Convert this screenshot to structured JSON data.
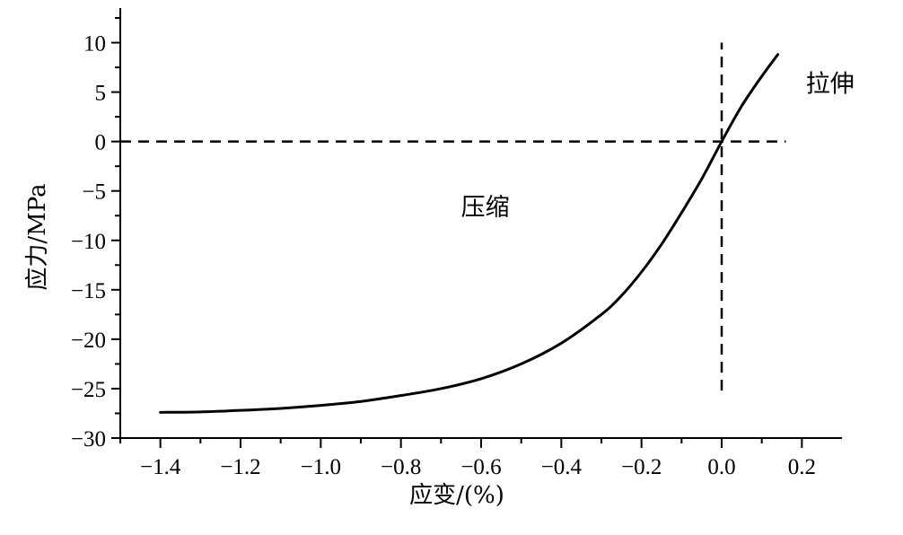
{
  "chart_data": {
    "type": "line",
    "title": "",
    "xlabel": "应变/(%)",
    "ylabel": "应力/MPa",
    "xlim": [
      -1.5,
      0.3
    ],
    "ylim": [
      -30,
      13.5
    ],
    "x_ticks": [
      -1.4,
      -1.2,
      -1.0,
      -0.8,
      -0.6,
      -0.4,
      -0.2,
      0.0,
      0.2
    ],
    "x_tick_labels": [
      "−1.4",
      "−1.2",
      "−1.0",
      "−0.8",
      "−0.6",
      "−0.4",
      "−0.2",
      "0.0",
      "0.2"
    ],
    "y_ticks": [
      10,
      5,
      0,
      -5,
      -10,
      -15,
      -20,
      -25,
      -30
    ],
    "y_tick_labels": [
      "10",
      "5",
      "0",
      "−5",
      "−10",
      "−15",
      "−20",
      "−25",
      "−30"
    ],
    "grid": false,
    "legend": "none",
    "series": [
      {
        "color": "#000000",
        "x": [
          -1.4,
          -1.3,
          -1.2,
          -1.1,
          -1.0,
          -0.9,
          -0.8,
          -0.7,
          -0.6,
          -0.5,
          -0.4,
          -0.3,
          -0.25,
          -0.2,
          -0.15,
          -0.1,
          -0.05,
          0.0,
          0.05,
          0.1,
          0.14
        ],
        "y": [
          -27.4,
          -27.35,
          -27.2,
          -27.0,
          -26.7,
          -26.3,
          -25.7,
          -25.0,
          -24.0,
          -22.5,
          -20.4,
          -17.5,
          -15.6,
          -13.2,
          -10.4,
          -7.2,
          -3.8,
          0.0,
          3.6,
          6.6,
          8.8
        ]
      }
    ],
    "reference_lines": [
      {
        "orientation": "horizontal",
        "value": 0,
        "from": -1.5,
        "to": 0.16,
        "style": "dashed"
      },
      {
        "orientation": "vertical",
        "value": 0,
        "from": -25.2,
        "to": 10.0,
        "style": "dashed"
      }
    ],
    "annotations": [
      {
        "text": "压缩",
        "x": -0.65,
        "y": -7.5
      },
      {
        "text": "拉伸",
        "x": 0.21,
        "y": 5.0
      }
    ]
  }
}
